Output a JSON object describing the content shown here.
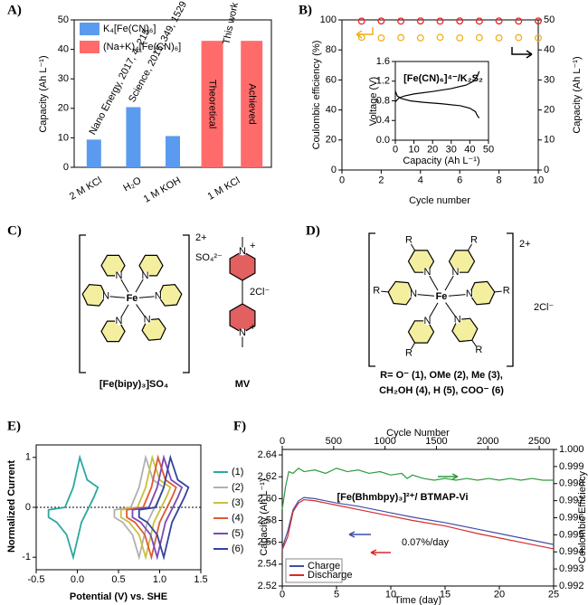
{
  "chart_data": [
    {
      "type": "bar",
      "label": "A)",
      "ylabel": "Capacity (Ah L⁻¹)",
      "categories": [
        "2 M KCl",
        "H₂O",
        "1 M KOH",
        null,
        "1 M KCl"
      ],
      "series": [
        {
          "name": "K₄[Fe(CN)₆]",
          "color": "#5b9bef",
          "values": [
            9.4,
            20.4,
            10.6,
            null,
            null
          ]
        },
        {
          "name": "(Na+K)₄[Fe(CN)₆]",
          "color": "#ff6b6b",
          "values": [
            null,
            null,
            null,
            42.9,
            42.9
          ]
        }
      ],
      "bar_labels": [
        "Nano Energy, 2017, 4, 215",
        "Science, 2015, 349, 1529",
        null,
        "Theoretical",
        "Achieved"
      ],
      "annotation": "This work",
      "annotation_color": "#ff0000",
      "ylim": [
        0,
        50
      ],
      "yticks": [
        0,
        10,
        20,
        30,
        40,
        50
      ],
      "legend": "upper left"
    },
    {
      "type": "scatter",
      "label": "B)",
      "xlabel": "Cycle number",
      "ylabel": "Coulombic efficiency (%)",
      "y2label": "Capacity (Ah L⁻¹)",
      "x": [
        1,
        2,
        3,
        4,
        5,
        6,
        7,
        8,
        9,
        10
      ],
      "series": [
        {
          "color": "#e8242a",
          "values": [
            99.2,
            99.3,
            99.2,
            99.3,
            99.2,
            99.3,
            99.2,
            99.3,
            99.2,
            99.3
          ]
        },
        {
          "color": "#f2b01e",
          "axis": "y2",
          "values": [
            44.2,
            44,
            44.1,
            44,
            44.2,
            44,
            44.1,
            44,
            44.1,
            44
          ]
        }
      ],
      "xlim": [
        0,
        10
      ],
      "xticks": [
        0,
        2,
        4,
        6,
        8,
        10
      ],
      "ylim": [
        0,
        100
      ],
      "yticks": [
        0,
        20,
        40,
        60,
        80,
        100
      ],
      "y2lim": [
        0,
        50
      ],
      "y2ticks": [
        0,
        10,
        20,
        30,
        40,
        50
      ]
    },
    {
      "type": "line",
      "title": "[Fe(CN)₆]⁴⁻/K₂S₂",
      "xlabel": "Capacity (Ah L⁻¹)",
      "ylabel": "Voltage (V)",
      "series": [
        {
          "color": "#000000",
          "x": [
            0,
            2,
            5,
            10,
            20,
            30,
            38,
            42,
            44,
            45
          ],
          "values": [
            0.78,
            0.86,
            0.9,
            0.94,
            0.99,
            1.05,
            1.12,
            1.2,
            1.3,
            1.4
          ]
        },
        {
          "color": "#000000",
          "x": [
            0,
            1,
            3,
            8,
            15,
            25,
            35,
            40,
            43,
            44,
            45
          ],
          "values": [
            1.0,
            0.9,
            0.85,
            0.8,
            0.77,
            0.74,
            0.7,
            0.65,
            0.58,
            0.5,
            0.45
          ]
        }
      ],
      "xlim": [
        0,
        50
      ],
      "xticks": [
        0,
        10,
        20,
        30,
        40,
        50
      ],
      "ylim": [
        0,
        1.6
      ],
      "yticks": [
        {
          "value": 0,
          "label": "0.0"
        },
        0.4,
        0.8,
        1.2,
        1.6
      ]
    },
    {
      "type": "line",
      "label": "E)",
      "xlabel": "Potential (V) vs. SHE",
      "ylabel": "Normalized Current",
      "closed": true,
      "zero_line": "dotted",
      "series": [
        {
          "name": "(1)",
          "color": "#2aa8a0",
          "x": [
            -0.35,
            -0.15,
            -0.05,
            0.03,
            0.12,
            0.25,
            0.2,
            0.05,
            -0.05,
            -0.13,
            -0.25,
            -0.35
          ],
          "values": [
            -0.05,
            0,
            0.4,
            1,
            0.55,
            0.4,
            0.2,
            -0.3,
            -1,
            -0.55,
            -0.3,
            -0.2
          ]
        },
        {
          "name": "(2)",
          "color": "#b0b0b0",
          "x": [
            0.45,
            0.65,
            0.75,
            0.83,
            0.92,
            1.05,
            1.0,
            0.85,
            0.75,
            0.67,
            0.55,
            0.45
          ],
          "values": [
            -0.05,
            0,
            0.4,
            1,
            0.55,
            0.4,
            0.2,
            -0.3,
            -1,
            -0.55,
            -0.3,
            -0.2
          ]
        },
        {
          "name": "(3)",
          "color": "#c8c040",
          "x": [
            0.53,
            0.73,
            0.83,
            0.91,
            1.0,
            1.13,
            1.08,
            0.93,
            0.83,
            0.75,
            0.63,
            0.53
          ],
          "values": [
            -0.05,
            0,
            0.4,
            1,
            0.55,
            0.4,
            0.2,
            -0.3,
            -1,
            -0.55,
            -0.3,
            -0.2
          ]
        },
        {
          "name": "(4)",
          "color": "#e05a30",
          "x": [
            0.6,
            0.8,
            0.9,
            0.98,
            1.07,
            1.2,
            1.15,
            1.0,
            0.9,
            0.82,
            0.7,
            0.6
          ],
          "values": [
            -0.05,
            0,
            0.4,
            1,
            0.55,
            0.4,
            0.2,
            -0.3,
            -1,
            -0.55,
            -0.3,
            -0.2
          ]
        },
        {
          "name": "(5)",
          "color": "#7a4ab8",
          "x": [
            0.67,
            0.87,
            0.97,
            1.05,
            1.14,
            1.27,
            1.22,
            1.07,
            0.97,
            0.89,
            0.77,
            0.67
          ],
          "values": [
            -0.05,
            0,
            0.4,
            1,
            0.55,
            0.4,
            0.2,
            -0.3,
            -1,
            -0.55,
            -0.3,
            -0.2
          ]
        },
        {
          "name": "(6)",
          "color": "#34449c",
          "x": [
            0.75,
            0.95,
            1.05,
            1.13,
            1.22,
            1.35,
            1.3,
            1.15,
            1.05,
            0.97,
            0.85,
            0.75
          ],
          "values": [
            -0.05,
            0,
            0.4,
            1,
            0.55,
            0.4,
            0.2,
            -0.3,
            -1,
            -0.55,
            -0.3,
            -0.2
          ]
        }
      ],
      "xlim": [
        -0.5,
        1.5
      ],
      "xticks": [
        -0.5,
        {
          "value": 0,
          "label": "0.0"
        },
        0.5,
        {
          "value": 1,
          "label": "1.0"
        },
        1.5
      ],
      "ylim": [
        -1.25,
        1.25
      ],
      "yticks": [
        -1,
        0,
        1
      ],
      "legend": "right"
    },
    {
      "type": "line",
      "label": "F)",
      "xlabel": "Time (day)",
      "x2label": "Cycle Number",
      "ylabel": "Capacity (Ah L⁻¹)",
      "y2label": "Coulombic Efficiency",
      "annotations": [
        "[Fe(Bhmbpy)₃]²⁺/ BTMAP-Vi",
        "0.07%/day"
      ],
      "series": [
        {
          "name": "Charge",
          "color": "#3f4fa8",
          "x": [
            0,
            0.5,
            1,
            1.5,
            2,
            3,
            4,
            5,
            7,
            10,
            12,
            15,
            18,
            20,
            22,
            25
          ],
          "values": [
            2.555,
            2.57,
            2.59,
            2.598,
            2.601,
            2.6,
            2.598,
            2.596,
            2.593,
            2.587,
            2.583,
            2.578,
            2.572,
            2.568,
            2.564,
            2.558
          ]
        },
        {
          "name": "Discharge",
          "color": "#d62a2a",
          "x": [
            0,
            0.5,
            1,
            1.5,
            2,
            3,
            4,
            5,
            7,
            10,
            12,
            15,
            18,
            20,
            22,
            25
          ],
          "values": [
            2.553,
            2.565,
            2.588,
            2.596,
            2.599,
            2.598,
            2.596,
            2.594,
            2.59,
            2.584,
            2.58,
            2.575,
            2.568,
            2.564,
            2.56,
            2.554
          ]
        },
        {
          "color": "#2e9a3e",
          "axis": "y2",
          "x": [
            0,
            0.3,
            0.6,
            1,
            1.5,
            2,
            3,
            4,
            5,
            6,
            7,
            8,
            9,
            10,
            11,
            11.5,
            12,
            13,
            14,
            15,
            16,
            17,
            18,
            19,
            20,
            21,
            22,
            23,
            24,
            25
          ],
          "values": [
            0.9965,
            0.9978,
            0.9987,
            0.9986,
            0.9989,
            0.9987,
            0.9988,
            0.9986,
            0.9989,
            0.9987,
            0.9988,
            0.9986,
            0.9987,
            0.9985,
            0.9986,
            0.9983,
            0.9985,
            0.9983,
            0.9982,
            0.9983,
            0.9982,
            0.9983,
            0.9982,
            0.9983,
            0.9982,
            0.9983,
            0.9982,
            0.9983,
            0.9982,
            0.9982
          ]
        }
      ],
      "xlim": [
        0,
        25
      ],
      "xticks": [
        0,
        5,
        10,
        15,
        20,
        25
      ],
      "x2lim": [
        0,
        2640
      ],
      "x2ticks": [
        0,
        500,
        1000,
        1500,
        2000,
        2500
      ],
      "ylim": [
        2.52,
        2.645
      ],
      "yticks": [
        2.52,
        2.54,
        2.56,
        2.58,
        {
          "value": 2.6,
          "label": "2.60"
        },
        2.62,
        2.64
      ],
      "y2lim": [
        0.992,
        1.0
      ],
      "y2ticks": [
        0.992,
        0.993,
        0.994,
        0.995,
        0.996,
        0.997,
        0.998,
        0.999,
        {
          "value": 1,
          "label": "1.000"
        }
      ],
      "legend": "lower left"
    }
  ],
  "structures": {
    "C": {
      "label": "C)",
      "charge": "2+",
      "counterion": "SO₄²⁻",
      "name": "[Fe(bipy)₃]SO₄",
      "metal": "Fe",
      "N": "N",
      "plus": "+",
      "mv_name": "MV",
      "mv_counterion": "2Cl⁻"
    },
    "D": {
      "label": "D)",
      "charge": "2+",
      "counterion": "2Cl⁻",
      "metal": "Fe",
      "N": "N",
      "R": "R",
      "caption": [
        "R= O⁻ (1), OMe (2), Me (3),",
        "CH₂OH (4), H (5), COO⁻ (6)"
      ]
    }
  }
}
